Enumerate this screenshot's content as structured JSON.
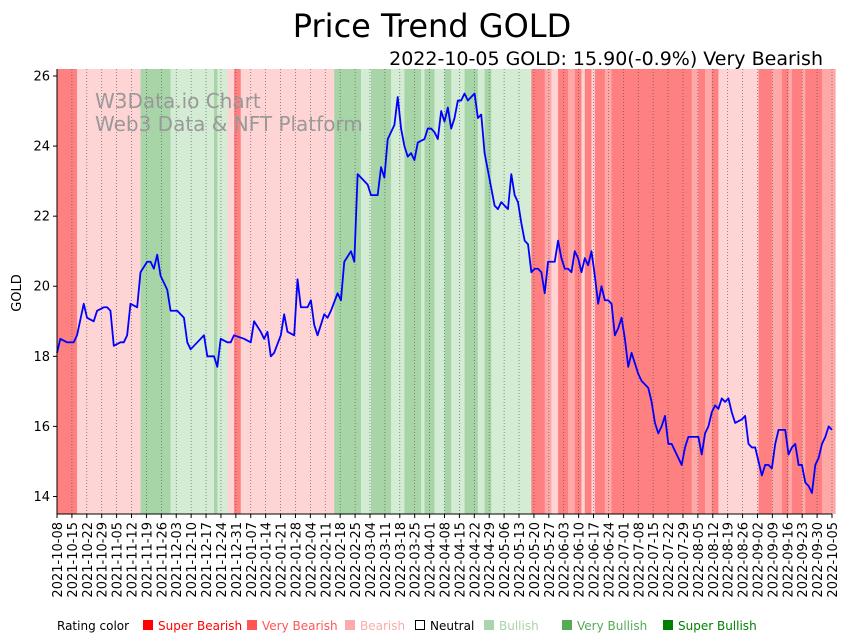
{
  "chart_data": {
    "type": "line",
    "title": "Price Trend GOLD",
    "subtitle": "2022-10-05 GOLD: 15.90(-0.9%) Very Bearish",
    "watermark": [
      "W3Data.io Chart",
      "Web3 Data & NFT Platform"
    ],
    "ylabel": "GOLD",
    "xlabel": "",
    "ylim": [
      13.5,
      26.2
    ],
    "yticks": [
      14,
      16,
      18,
      20,
      22,
      24,
      26
    ],
    "line_color": "#0000ff",
    "xticks": [
      "2021-10-08",
      "2021-10-15",
      "2021-10-22",
      "2021-10-29",
      "2021-11-05",
      "2021-11-12",
      "2021-11-19",
      "2021-11-26",
      "2021-12-03",
      "2021-12-10",
      "2021-12-17",
      "2021-12-24",
      "2021-12-31",
      "2022-01-07",
      "2022-01-14",
      "2022-01-21",
      "2022-01-28",
      "2022-02-04",
      "2022-02-11",
      "2022-02-18",
      "2022-02-25",
      "2022-03-04",
      "2022-03-11",
      "2022-03-18",
      "2022-03-25",
      "2022-04-01",
      "2022-04-08",
      "2022-04-15",
      "2022-04-22",
      "2022-04-29",
      "2022-05-06",
      "2022-05-13",
      "2022-05-20",
      "2022-05-27",
      "2022-06-03",
      "2022-06-10",
      "2022-06-17",
      "2022-06-24",
      "2022-07-01",
      "2022-07-08",
      "2022-07-15",
      "2022-07-22",
      "2022-07-29",
      "2022-08-05",
      "2022-08-12",
      "2022-08-19",
      "2022-08-26",
      "2022-09-02",
      "2022-09-09",
      "2022-09-16",
      "2022-09-23",
      "2022-09-30",
      "2022-10-05"
    ],
    "series": [
      {
        "name": "GOLD",
        "points": [
          [
            0,
            18.1
          ],
          [
            1,
            18.5
          ],
          [
            3,
            18.4
          ],
          [
            5,
            18.4
          ],
          [
            6,
            18.6
          ],
          [
            8,
            19.5
          ],
          [
            9,
            19.1
          ],
          [
            11,
            19.0
          ],
          [
            12,
            19.3
          ],
          [
            14,
            19.4
          ],
          [
            15,
            19.4
          ],
          [
            16,
            19.3
          ],
          [
            17,
            18.3
          ],
          [
            19,
            18.4
          ],
          [
            20,
            18.4
          ],
          [
            21,
            18.6
          ],
          [
            22,
            19.5
          ],
          [
            24,
            19.4
          ],
          [
            25,
            20.4
          ],
          [
            27,
            20.7
          ],
          [
            28,
            20.7
          ],
          [
            29,
            20.5
          ],
          [
            30,
            20.9
          ],
          [
            31,
            20.3
          ],
          [
            33,
            19.9
          ],
          [
            34,
            19.3
          ],
          [
            36,
            19.3
          ],
          [
            37,
            19.2
          ],
          [
            38,
            19.1
          ],
          [
            39,
            18.4
          ],
          [
            40,
            18.2
          ],
          [
            42,
            18.4
          ],
          [
            44,
            18.6
          ],
          [
            45,
            18.0
          ],
          [
            47,
            18.0
          ],
          [
            48,
            17.7
          ],
          [
            49,
            18.5
          ],
          [
            51,
            18.4
          ],
          [
            52,
            18.4
          ],
          [
            53,
            18.6
          ],
          [
            56,
            18.5
          ],
          [
            58,
            18.4
          ],
          [
            59,
            19.0
          ],
          [
            61,
            18.7
          ],
          [
            62,
            18.5
          ],
          [
            63,
            18.7
          ],
          [
            64,
            18.0
          ],
          [
            65,
            18.1
          ],
          [
            67,
            18.6
          ],
          [
            68,
            19.2
          ],
          [
            69,
            18.7
          ],
          [
            71,
            18.6
          ],
          [
            72,
            20.2
          ],
          [
            73,
            19.4
          ],
          [
            75,
            19.4
          ],
          [
            76,
            19.6
          ],
          [
            77,
            18.9
          ],
          [
            78,
            18.6
          ],
          [
            79,
            18.9
          ],
          [
            80,
            19.2
          ],
          [
            81,
            19.1
          ],
          [
            82,
            19.3
          ],
          [
            84,
            19.8
          ],
          [
            85,
            19.6
          ],
          [
            86,
            20.7
          ],
          [
            88,
            21.0
          ],
          [
            89,
            20.7
          ],
          [
            90,
            23.2
          ],
          [
            92,
            23.0
          ],
          [
            93,
            22.9
          ],
          [
            94,
            22.6
          ],
          [
            96,
            22.6
          ],
          [
            97,
            23.4
          ],
          [
            98,
            23.1
          ],
          [
            99,
            24.2
          ],
          [
            101,
            24.6
          ],
          [
            102,
            25.4
          ],
          [
            103,
            24.5
          ],
          [
            104,
            24.0
          ],
          [
            105,
            23.7
          ],
          [
            106,
            23.8
          ],
          [
            107,
            23.6
          ],
          [
            108,
            24.1
          ],
          [
            110,
            24.2
          ],
          [
            111,
            24.5
          ],
          [
            112,
            24.5
          ],
          [
            113,
            24.4
          ],
          [
            114,
            24.2
          ],
          [
            115,
            25.0
          ],
          [
            116,
            24.7
          ],
          [
            117,
            25.1
          ],
          [
            118,
            24.5
          ],
          [
            119,
            24.8
          ],
          [
            120,
            25.3
          ],
          [
            121,
            25.3
          ],
          [
            122,
            25.5
          ],
          [
            123,
            25.3
          ],
          [
            124,
            25.4
          ],
          [
            125,
            25.5
          ],
          [
            126,
            24.8
          ],
          [
            127,
            24.9
          ],
          [
            128,
            23.8
          ],
          [
            129,
            23.3
          ],
          [
            130,
            22.8
          ],
          [
            131,
            22.3
          ],
          [
            132,
            22.2
          ],
          [
            133,
            22.4
          ],
          [
            134,
            22.3
          ],
          [
            135,
            22.2
          ],
          [
            136,
            23.2
          ],
          [
            137,
            22.6
          ],
          [
            138,
            22.4
          ],
          [
            139,
            21.8
          ],
          [
            140,
            21.3
          ],
          [
            141,
            21.2
          ],
          [
            142,
            20.4
          ],
          [
            143,
            20.5
          ],
          [
            144,
            20.5
          ],
          [
            145,
            20.4
          ],
          [
            146,
            19.8
          ],
          [
            147,
            20.7
          ],
          [
            148,
            20.7
          ],
          [
            149,
            20.7
          ],
          [
            150,
            21.3
          ],
          [
            151,
            20.8
          ],
          [
            152,
            20.5
          ],
          [
            153,
            20.5
          ],
          [
            154,
            20.4
          ],
          [
            155,
            21.0
          ],
          [
            156,
            20.8
          ],
          [
            157,
            20.4
          ],
          [
            158,
            20.8
          ],
          [
            159,
            20.6
          ],
          [
            160,
            21.0
          ],
          [
            161,
            20.3
          ],
          [
            162,
            19.5
          ],
          [
            163,
            20.0
          ],
          [
            164,
            19.6
          ],
          [
            165,
            19.6
          ],
          [
            166,
            19.5
          ],
          [
            167,
            18.6
          ],
          [
            168,
            18.8
          ],
          [
            169,
            19.1
          ],
          [
            170,
            18.5
          ],
          [
            171,
            17.7
          ],
          [
            172,
            18.1
          ],
          [
            173,
            17.8
          ],
          [
            174,
            17.5
          ],
          [
            175,
            17.3
          ],
          [
            177,
            17.1
          ],
          [
            178,
            16.7
          ],
          [
            179,
            16.1
          ],
          [
            180,
            15.8
          ],
          [
            181,
            16.0
          ],
          [
            182,
            16.3
          ],
          [
            183,
            15.5
          ],
          [
            184,
            15.5
          ],
          [
            185,
            15.3
          ],
          [
            186,
            15.1
          ],
          [
            187,
            14.9
          ],
          [
            188,
            15.4
          ],
          [
            189,
            15.7
          ],
          [
            191,
            15.7
          ],
          [
            192,
            15.7
          ],
          [
            193,
            15.2
          ],
          [
            194,
            15.8
          ],
          [
            195,
            16.0
          ],
          [
            196,
            16.4
          ],
          [
            197,
            16.6
          ],
          [
            198,
            16.5
          ],
          [
            199,
            16.8
          ],
          [
            200,
            16.7
          ],
          [
            201,
            16.8
          ],
          [
            202,
            16.4
          ],
          [
            203,
            16.1
          ],
          [
            205,
            16.2
          ],
          [
            206,
            16.3
          ],
          [
            207,
            15.5
          ],
          [
            208,
            15.4
          ],
          [
            209,
            15.4
          ],
          [
            210,
            15.0
          ],
          [
            211,
            14.6
          ],
          [
            212,
            14.9
          ],
          [
            213,
            14.9
          ],
          [
            214,
            14.8
          ],
          [
            215,
            15.5
          ],
          [
            216,
            15.9
          ],
          [
            217,
            15.9
          ],
          [
            218,
            15.9
          ],
          [
            219,
            15.2
          ],
          [
            220,
            15.4
          ],
          [
            221,
            15.5
          ],
          [
            222,
            14.9
          ],
          [
            223,
            14.9
          ],
          [
            224,
            14.4
          ],
          [
            225,
            14.3
          ],
          [
            226,
            14.1
          ],
          [
            227,
            14.9
          ],
          [
            228,
            15.1
          ],
          [
            229,
            15.5
          ],
          [
            230,
            15.7
          ],
          [
            231,
            16.0
          ],
          [
            232,
            15.9
          ]
        ]
      }
    ],
    "background_bands": [
      {
        "from": 0,
        "to": 6,
        "rating": "super_bearish"
      },
      {
        "from": 6,
        "to": 25,
        "rating": "bearish"
      },
      {
        "from": 25,
        "to": 34,
        "rating": "very_bullish"
      },
      {
        "from": 34,
        "to": 47,
        "rating": "bullish"
      },
      {
        "from": 47,
        "to": 48,
        "rating": "very_bullish"
      },
      {
        "from": 48,
        "to": 51,
        "rating": "bullish"
      },
      {
        "from": 51,
        "to": 53,
        "rating": "bearish"
      },
      {
        "from": 53,
        "to": 55,
        "rating": "super_bearish"
      },
      {
        "from": 55,
        "to": 83,
        "rating": "bearish"
      },
      {
        "from": 83,
        "to": 91,
        "rating": "very_bullish"
      },
      {
        "from": 91,
        "to": 94,
        "rating": "bullish"
      },
      {
        "from": 94,
        "to": 100,
        "rating": "very_bullish"
      },
      {
        "from": 100,
        "to": 104,
        "rating": "bullish"
      },
      {
        "from": 104,
        "to": 109,
        "rating": "very_bullish"
      },
      {
        "from": 109,
        "to": 110,
        "rating": "bullish"
      },
      {
        "from": 110,
        "to": 113,
        "rating": "very_bullish"
      },
      {
        "from": 113,
        "to": 116,
        "rating": "bullish"
      },
      {
        "from": 116,
        "to": 118,
        "rating": "very_bullish"
      },
      {
        "from": 118,
        "to": 122,
        "rating": "bullish"
      },
      {
        "from": 122,
        "to": 126,
        "rating": "very_bullish"
      },
      {
        "from": 126,
        "to": 128,
        "rating": "bullish"
      },
      {
        "from": 128,
        "to": 130,
        "rating": "very_bullish"
      },
      {
        "from": 130,
        "to": 142,
        "rating": "bullish"
      },
      {
        "from": 142,
        "to": 146,
        "rating": "super_bearish"
      },
      {
        "from": 146,
        "to": 148,
        "rating": "very_bearish"
      },
      {
        "from": 148,
        "to": 150,
        "rating": "bearish"
      },
      {
        "from": 150,
        "to": 153,
        "rating": "super_bearish"
      },
      {
        "from": 153,
        "to": 155,
        "rating": "very_bearish"
      },
      {
        "from": 155,
        "to": 157,
        "rating": "super_bearish"
      },
      {
        "from": 157,
        "to": 158,
        "rating": "bearish"
      },
      {
        "from": 158,
        "to": 160,
        "rating": "super_bearish"
      },
      {
        "from": 160,
        "to": 161,
        "rating": "bearish"
      },
      {
        "from": 161,
        "to": 164,
        "rating": "super_bearish"
      },
      {
        "from": 164,
        "to": 166,
        "rating": "very_bearish"
      },
      {
        "from": 166,
        "to": 190,
        "rating": "super_bearish"
      },
      {
        "from": 190,
        "to": 192,
        "rating": "very_bearish"
      },
      {
        "from": 192,
        "to": 194,
        "rating": "super_bearish"
      },
      {
        "from": 194,
        "to": 196,
        "rating": "very_bearish"
      },
      {
        "from": 196,
        "to": 198,
        "rating": "super_bearish"
      },
      {
        "from": 198,
        "to": 210,
        "rating": "bearish"
      },
      {
        "from": 210,
        "to": 214,
        "rating": "super_bearish"
      },
      {
        "from": 214,
        "to": 217,
        "rating": "very_bearish"
      },
      {
        "from": 217,
        "to": 219,
        "rating": "super_bearish"
      },
      {
        "from": 219,
        "to": 220,
        "rating": "very_bearish"
      },
      {
        "from": 220,
        "to": 223,
        "rating": "super_bearish"
      },
      {
        "from": 223,
        "to": 224,
        "rating": "very_bearish"
      },
      {
        "from": 224,
        "to": 229,
        "rating": "super_bearish"
      },
      {
        "from": 229,
        "to": 233,
        "rating": "very_bearish"
      }
    ],
    "rating_colors": {
      "super_bearish": "#ff8080",
      "very_bearish": "#ffa8a8",
      "bearish": "#ffd4d4",
      "neutral": "#ffffff",
      "bullish": "#d4ecd4",
      "very_bullish": "#a8d5a8",
      "super_bullish": "#80c280"
    },
    "legend": {
      "title": "Rating color",
      "items": [
        {
          "label": "Super Bearish",
          "color": "#ff0000"
        },
        {
          "label": "Very Bearish",
          "color": "#ff5555"
        },
        {
          "label": "Bearish",
          "color": "#ffaaaa"
        },
        {
          "label": "Neutral",
          "color": "#000000",
          "hollow": true
        },
        {
          "label": "Bullish",
          "color": "#aad4aa"
        },
        {
          "label": "Very Bullish",
          "color": "#55aa55"
        },
        {
          "label": "Super Bullish",
          "color": "#008000"
        }
      ]
    }
  }
}
